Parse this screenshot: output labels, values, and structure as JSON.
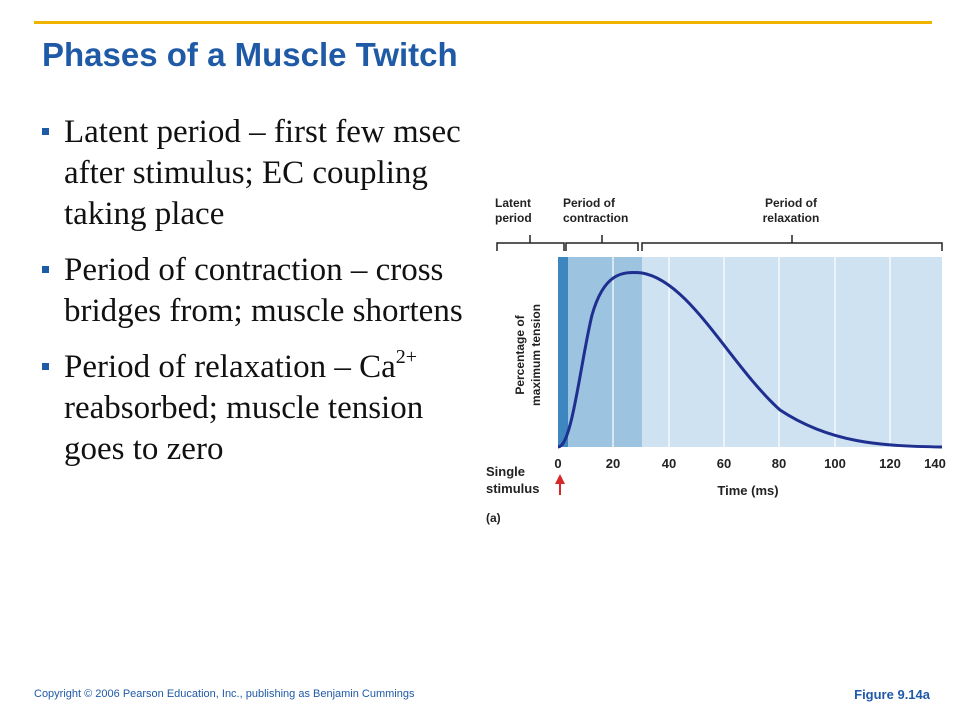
{
  "slide": {
    "title": "Phases of a Muscle Twitch",
    "bullets": [
      {
        "main": "Latent period – first few msec after stimulus; EC coupling taking place"
      },
      {
        "main": "Period of contraction – cross bridges from; muscle shortens"
      },
      {
        "pre": "Period of relaxation – Ca",
        "sup": "2+",
        "post": " reabsorbed; muscle tension goes to zero"
      }
    ]
  },
  "figure": {
    "phase_labels": {
      "latent": [
        "Latent",
        "period"
      ],
      "contraction": [
        "Period of",
        "contraction"
      ],
      "relaxation": [
        "Period of",
        "relaxation"
      ]
    },
    "ylabel": [
      "Percentage of",
      "maximum tension"
    ],
    "xlabel": "Time (ms)",
    "x_ticks": [
      "0",
      "20",
      "40",
      "60",
      "80",
      "100",
      "120",
      "140"
    ],
    "stimulus_label": [
      "Single",
      "stimulus"
    ],
    "panel_label": "(a)",
    "colors": {
      "latent": "#3d86c0",
      "contraction": "#9cc3e0",
      "relaxation": "#cfe2f1",
      "curve": "#1f2f8f",
      "arrow": "#d62828"
    }
  },
  "footer": {
    "copyright": "Copyright © 2006 Pearson Education, Inc., publishing as Benjamin Cummings",
    "figure_ref": "Figure 9.14a"
  }
}
